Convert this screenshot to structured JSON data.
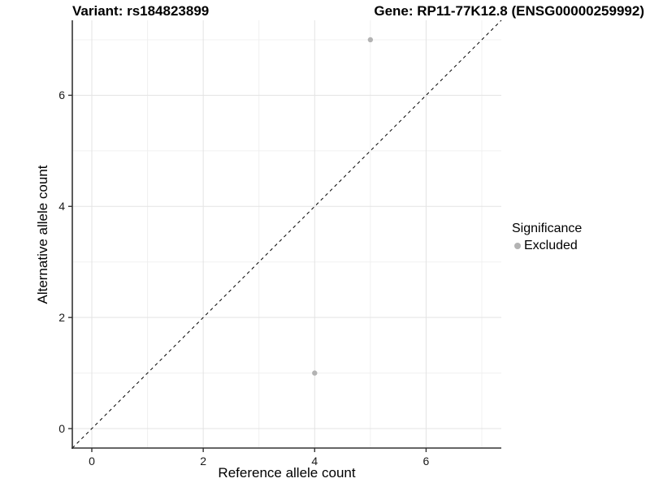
{
  "header": {
    "variant_title": "Variant: rs184823899",
    "gene_title": "Gene: RP11-77K12.8 (ENSG00000259992)"
  },
  "legend": {
    "title": "Significance",
    "items": [
      {
        "label": "Excluded",
        "color": "#b3b3b3"
      }
    ]
  },
  "chart_data": {
    "type": "scatter",
    "xlabel": "Reference allele count",
    "ylabel": "Alternative allele count",
    "xlim": [
      -0.35,
      7.35
    ],
    "ylim": [
      -0.35,
      7.35
    ],
    "x_ticks": [
      0,
      2,
      4,
      6
    ],
    "y_ticks": [
      0,
      2,
      4,
      6
    ],
    "x_minor_ticks": [
      1,
      3,
      5,
      7
    ],
    "y_minor_ticks": [
      1,
      3,
      5,
      7
    ],
    "grid": true,
    "legend_position": "right",
    "series": [
      {
        "name": "Excluded",
        "color": "#b3b3b3",
        "points": [
          {
            "x": 5,
            "y": 7
          },
          {
            "x": 4,
            "y": 1
          }
        ]
      }
    ],
    "reference_line": {
      "type": "identity",
      "style": "dashed",
      "color": "#000000",
      "from": [
        -0.35,
        -0.35
      ],
      "to": [
        7.35,
        7.35
      ]
    }
  },
  "colors": {
    "grid_major": "#e3e3e3",
    "grid_minor": "#f0f0f0",
    "axis_line": "#333333",
    "tick_mark": "#333333",
    "point": "#b3b3b3"
  }
}
